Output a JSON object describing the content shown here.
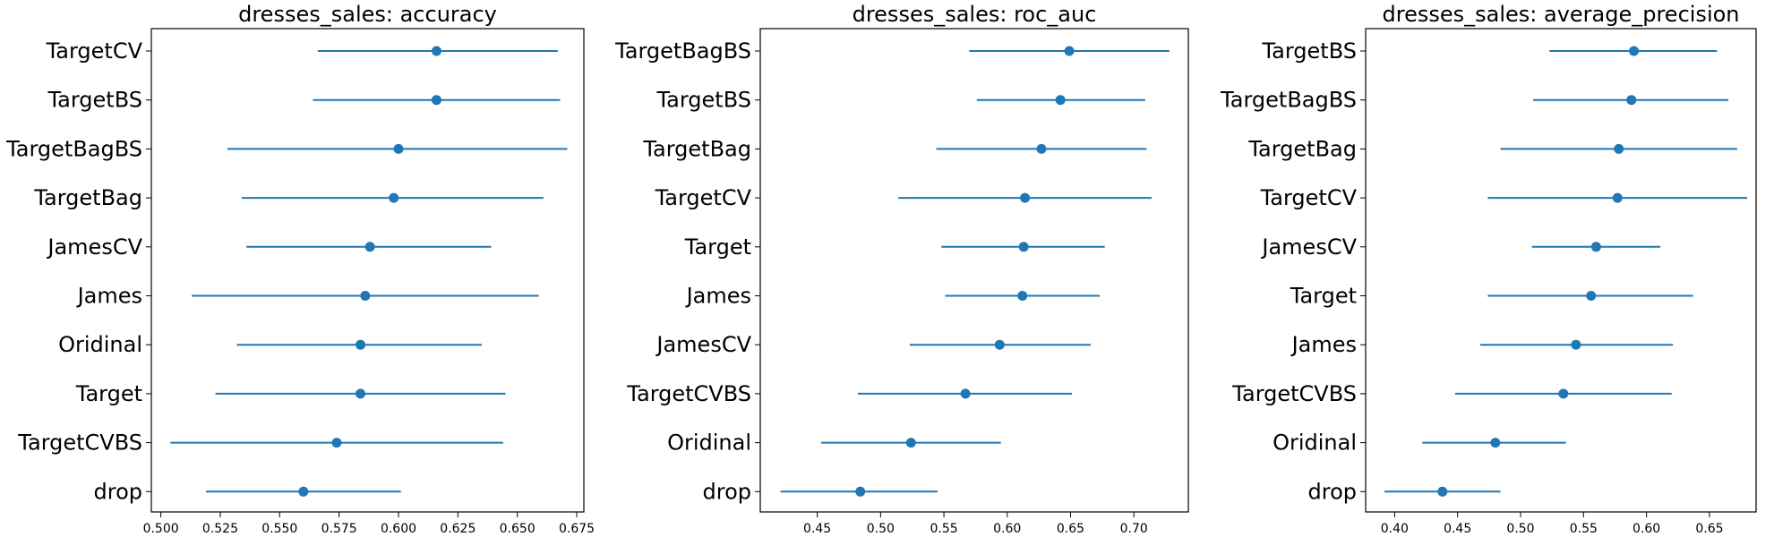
{
  "chart_data": [
    {
      "type": "errorbar",
      "title": "dresses_sales: accuracy",
      "xlim": [
        0.496,
        0.678
      ],
      "xticks": [
        0.5,
        0.525,
        0.55,
        0.575,
        0.6,
        0.625,
        0.65,
        0.675
      ],
      "xtick_labels": [
        "0.500",
        "0.525",
        "0.550",
        "0.575",
        "0.600",
        "0.625",
        "0.650",
        "0.675"
      ],
      "color": "#1f77b4",
      "categories": [
        "TargetCV",
        "TargetBS",
        "TargetBagBS",
        "TargetBag",
        "JamesCV",
        "James",
        "Oridinal",
        "Target",
        "TargetCVBS",
        "drop"
      ],
      "values": [
        0.616,
        0.616,
        0.6,
        0.598,
        0.588,
        0.586,
        0.584,
        0.584,
        0.574,
        0.56
      ],
      "lower": [
        0.566,
        0.564,
        0.528,
        0.534,
        0.536,
        0.513,
        0.532,
        0.523,
        0.504,
        0.519
      ],
      "upper": [
        0.667,
        0.668,
        0.671,
        0.661,
        0.639,
        0.659,
        0.635,
        0.645,
        0.644,
        0.601
      ]
    },
    {
      "type": "errorbar",
      "title": "dresses_sales: roc_auc",
      "xlim": [
        0.405,
        0.743
      ],
      "xticks": [
        0.45,
        0.5,
        0.55,
        0.6,
        0.65,
        0.7
      ],
      "xtick_labels": [
        "0.45",
        "0.50",
        "0.55",
        "0.60",
        "0.65",
        "0.70"
      ],
      "color": "#1f77b4",
      "categories": [
        "TargetBagBS",
        "TargetBS",
        "TargetBag",
        "TargetCV",
        "Target",
        "James",
        "JamesCV",
        "TargetCVBS",
        "Oridinal",
        "drop"
      ],
      "values": [
        0.649,
        0.642,
        0.627,
        0.614,
        0.613,
        0.612,
        0.594,
        0.567,
        0.524,
        0.484
      ],
      "lower": [
        0.57,
        0.576,
        0.544,
        0.514,
        0.548,
        0.551,
        0.523,
        0.482,
        0.453,
        0.421
      ],
      "upper": [
        0.728,
        0.709,
        0.71,
        0.714,
        0.677,
        0.673,
        0.666,
        0.651,
        0.595,
        0.545
      ]
    },
    {
      "type": "errorbar",
      "title": "dresses_sales: average_precision",
      "xlim": [
        0.377,
        0.687
      ],
      "xticks": [
        0.4,
        0.45,
        0.5,
        0.55,
        0.6,
        0.65
      ],
      "xtick_labels": [
        "0.40",
        "0.45",
        "0.50",
        "0.55",
        "0.60",
        "0.65"
      ],
      "color": "#1f77b4",
      "categories": [
        "TargetBS",
        "TargetBagBS",
        "TargetBag",
        "TargetCV",
        "JamesCV",
        "Target",
        "James",
        "TargetCVBS",
        "Oridinal",
        "drop"
      ],
      "values": [
        0.59,
        0.588,
        0.578,
        0.577,
        0.56,
        0.556,
        0.544,
        0.534,
        0.48,
        0.438
      ],
      "lower": [
        0.523,
        0.51,
        0.484,
        0.474,
        0.509,
        0.474,
        0.468,
        0.448,
        0.422,
        0.392
      ],
      "upper": [
        0.656,
        0.665,
        0.672,
        0.68,
        0.611,
        0.637,
        0.621,
        0.62,
        0.536,
        0.484
      ]
    }
  ]
}
